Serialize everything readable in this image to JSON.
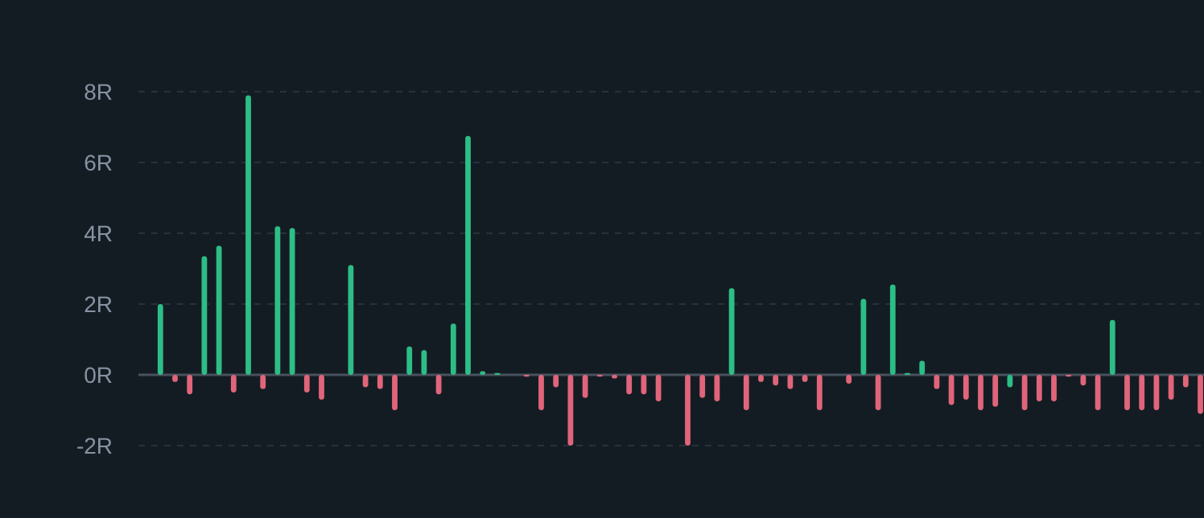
{
  "chart_data": {
    "type": "bar",
    "categories": [
      null,
      null,
      null,
      null,
      null,
      null,
      null,
      null,
      null,
      null,
      null,
      null,
      null,
      null,
      null,
      null,
      null,
      null,
      null,
      null,
      null,
      null,
      null,
      null,
      null,
      null,
      null,
      null,
      null,
      null,
      null,
      null,
      null,
      null,
      null,
      null,
      null,
      null,
      null,
      null,
      null,
      null,
      null,
      null,
      null,
      null,
      null,
      null,
      null,
      null,
      null,
      null,
      null,
      null,
      null,
      null,
      null,
      null,
      null,
      null,
      null,
      null,
      null,
      null,
      null,
      null,
      null,
      null,
      null,
      null,
      null,
      null,
      null
    ],
    "values": [
      null,
      2.0,
      -0.2,
      -0.55,
      3.35,
      3.65,
      -0.5,
      7.9,
      -0.4,
      4.2,
      4.15,
      -0.5,
      -0.7,
      null,
      3.1,
      -0.35,
      -0.4,
      -1.0,
      0.8,
      0.7,
      -0.55,
      1.45,
      6.75,
      0.1,
      0.05,
      null,
      -0.05,
      -1.0,
      -0.35,
      -2.0,
      -0.65,
      -0.05,
      -0.1,
      -0.55,
      -0.55,
      -0.75,
      null,
      -2.0,
      -0.65,
      -0.75,
      2.45,
      -1.0,
      -0.2,
      -0.3,
      -0.4,
      -0.2,
      -1.0,
      null,
      -0.25,
      2.15,
      -1.0,
      2.55,
      0.05,
      0.4,
      -0.4,
      -0.85,
      -0.7,
      -1.0,
      -0.9,
      -0.35,
      -1.0,
      -0.75,
      -0.75,
      -0.05,
      -0.3,
      -1.0,
      1.55,
      -1.0,
      -1.0,
      -1.0,
      -0.7,
      -0.35,
      -1.1
    ],
    "colors": [
      null,
      "#2dbd86",
      "#e0657a",
      "#e0657a",
      "#2dbd86",
      "#2dbd86",
      "#e0657a",
      "#2dbd86",
      "#e0657a",
      "#2dbd86",
      "#2dbd86",
      "#e0657a",
      "#e0657a",
      null,
      "#2dbd86",
      "#e0657a",
      "#e0657a",
      "#e0657a",
      "#2dbd86",
      "#2dbd86",
      "#e0657a",
      "#2dbd86",
      "#2dbd86",
      "#2dbd86",
      "#2dbd86",
      null,
      "#e0657a",
      "#e0657a",
      "#e0657a",
      "#e0657a",
      "#e0657a",
      "#e0657a",
      "#e0657a",
      "#e0657a",
      "#e0657a",
      "#e0657a",
      null,
      "#e0657a",
      "#e0657a",
      "#e0657a",
      "#2dbd86",
      "#e0657a",
      "#e0657a",
      "#e0657a",
      "#e0657a",
      "#e0657a",
      "#e0657a",
      null,
      "#e0657a",
      "#2dbd86",
      "#e0657a",
      "#2dbd86",
      "#2dbd86",
      "#2dbd86",
      "#e0657a",
      "#e0657a",
      "#e0657a",
      "#e0657a",
      "#e0657a",
      "#2dbd86",
      "#e0657a",
      "#e0657a",
      "#e0657a",
      "#e0657a",
      "#e0657a",
      "#e0657a",
      "#2dbd86",
      "#e0657a",
      "#e0657a",
      "#e0657a",
      "#e0657a",
      "#e0657a",
      "#e0657a"
    ],
    "ylim": [
      -2,
      8
    ],
    "yticks": [
      {
        "value": -2,
        "label": "-2R"
      },
      {
        "value": 0,
        "label": "0R"
      },
      {
        "value": 2,
        "label": "2R"
      },
      {
        "value": 4,
        "label": "4R"
      },
      {
        "value": 6,
        "label": "6R"
      },
      {
        "value": 8,
        "label": "8R"
      }
    ],
    "grid": "y"
  }
}
